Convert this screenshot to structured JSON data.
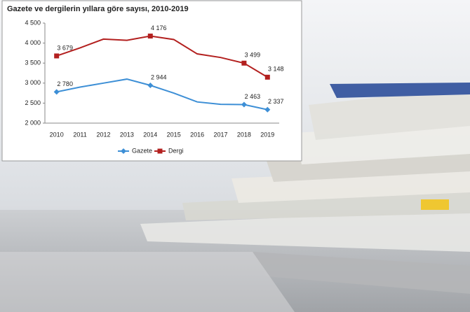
{
  "chart_data": {
    "type": "line",
    "title": "Gazete ve dergilerin yıllara göre sayısı, 2010-2019",
    "categories": [
      "2010",
      "2011",
      "2012",
      "2013",
      "2014",
      "2015",
      "2016",
      "2017",
      "2018",
      "2019"
    ],
    "series": [
      {
        "name": "Gazete",
        "color": "#3d8fd6",
        "marker": "diamond",
        "values": [
          2780,
          2900,
          3000,
          3100,
          2944,
          2750,
          2530,
          2470,
          2463,
          2337
        ],
        "value_labels": [
          "2 780",
          null,
          null,
          null,
          "2 944",
          null,
          null,
          null,
          "2 463",
          "2 337"
        ]
      },
      {
        "name": "Dergi",
        "color": "#b3201f",
        "marker": "square",
        "values": [
          3679,
          3880,
          4100,
          4070,
          4176,
          4090,
          3730,
          3640,
          3499,
          3148
        ],
        "value_labels": [
          "3 679",
          null,
          null,
          null,
          "4 176",
          null,
          null,
          null,
          "3 499",
          "3 148"
        ]
      }
    ],
    "ylim": [
      2000,
      4500
    ],
    "yticks": [
      {
        "value": 2000,
        "label": "2 000"
      },
      {
        "value": 2500,
        "label": "2 500"
      },
      {
        "value": 3000,
        "label": "3 000"
      },
      {
        "value": 3500,
        "label": "3 500"
      },
      {
        "value": 4000,
        "label": "4 000"
      },
      {
        "value": 4500,
        "label": "4 500"
      }
    ],
    "grid": false,
    "legend": "bottom"
  }
}
